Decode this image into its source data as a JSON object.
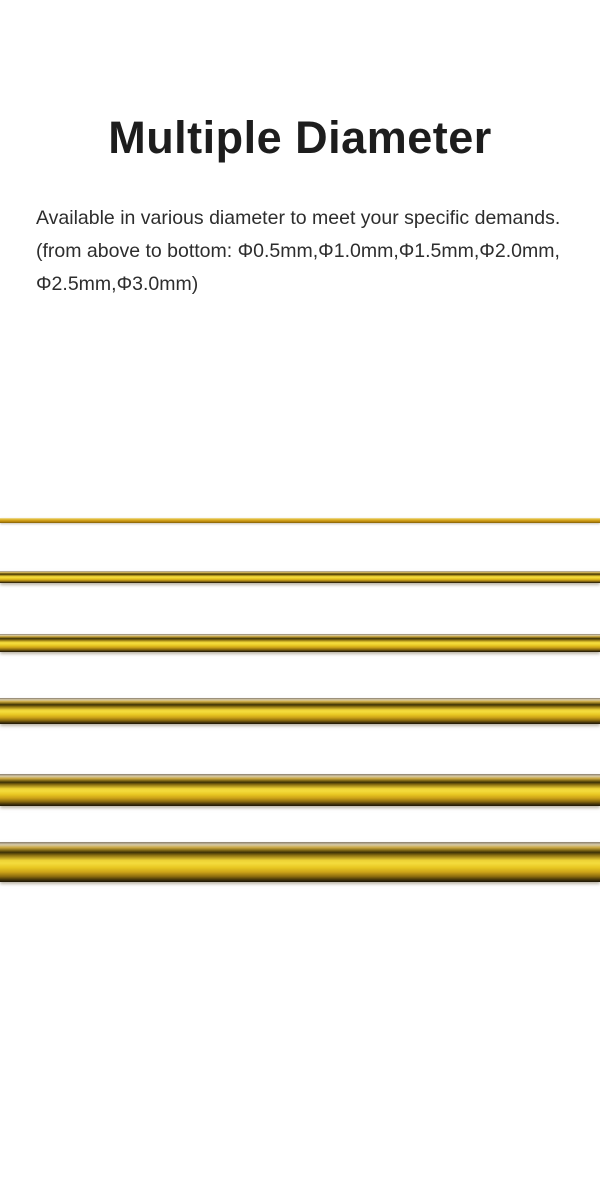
{
  "page": {
    "title": "Multiple Diameter",
    "description_lines": [
      "Available in various diameter to meet your specific demands.",
      "(from above to bottom: Φ0.5mm,Φ1.0mm,Φ1.5mm,Φ2.0mm,",
      "Φ2.5mm,Φ3.0mm)"
    ]
  },
  "rods": {
    "count": 6,
    "order": "top-to-bottom",
    "diameter_labels": [
      "Φ0.5mm",
      "Φ1.0mm",
      "Φ1.5mm",
      "Φ2.0mm",
      "Φ2.5mm",
      "Φ3.0mm"
    ]
  },
  "colors": {
    "background": "#ffffff",
    "title_text": "#1d1d1d",
    "body_text": "#2d2d2d",
    "rod_bright_yellow": "#f2d735",
    "rod_gold": "#c79a1e",
    "rod_dark_stripe": "#3c3106",
    "rod_edge_dark": "#1c1604",
    "rod_top_highlight": "#d8cba6"
  }
}
